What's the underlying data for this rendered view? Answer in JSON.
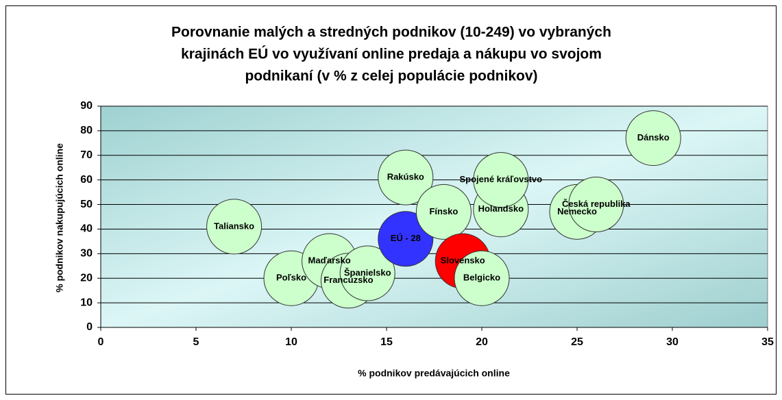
{
  "chart_data": {
    "type": "bubble",
    "title": [
      "Porovnanie malých a stredných podnikov (10-249) vo vybraných",
      "krajinách EÚ vo využívaní online predaja a nákupu vo svojom",
      "podnikaní (v % z celej populácie podnikov)"
    ],
    "x_label": "% podnikov predávajúcich online",
    "y_label": "% podnikov nakupujúcich online",
    "xlim": [
      0,
      35
    ],
    "xticks": [
      0,
      5,
      10,
      15,
      20,
      25,
      30,
      35
    ],
    "ylim": [
      0,
      90
    ],
    "yticks": [
      0,
      10,
      20,
      30,
      40,
      50,
      60,
      70,
      80,
      90
    ],
    "grid": true,
    "points": [
      {
        "label": "Dánsko",
        "x": 29,
        "y": 77,
        "color": "#ccffcc"
      },
      {
        "label": "Taliansko",
        "x": 7,
        "y": 41,
        "color": "#ccffcc"
      },
      {
        "label": "Poľsko",
        "x": 10,
        "y": 20,
        "color": "#ccffcc"
      },
      {
        "label": "Maďarsko",
        "x": 12,
        "y": 27,
        "color": "#ccffcc"
      },
      {
        "label": "Francúzsko",
        "x": 13,
        "y": 19,
        "color": "#ccffcc"
      },
      {
        "label": "Španielsko",
        "x": 14,
        "y": 22,
        "color": "#ccffcc"
      },
      {
        "label": "Rakúsko",
        "x": 16,
        "y": 61,
        "color": "#ccffcc"
      },
      {
        "label": "EÚ - 28",
        "x": 16,
        "y": 36,
        "color": "#3333ff"
      },
      {
        "label": "Fínsko",
        "x": 18,
        "y": 47,
        "color": "#ccffcc"
      },
      {
        "label": "Holandsko",
        "x": 21,
        "y": 48,
        "color": "#ccffcc"
      },
      {
        "label": "Spojené kráľovstvo",
        "x": 21,
        "y": 60,
        "color": "#ccffcc"
      },
      {
        "label": "Slovensko",
        "x": 19,
        "y": 27,
        "color": "#ff0000"
      },
      {
        "label": "Belgicko",
        "x": 20,
        "y": 20,
        "color": "#ccffcc"
      },
      {
        "label": "Nemecko",
        "x": 25,
        "y": 47,
        "color": "#ccffcc"
      },
      {
        "label": "Česká republika",
        "x": 26,
        "y": 50,
        "color": "#ccffcc"
      }
    ]
  }
}
